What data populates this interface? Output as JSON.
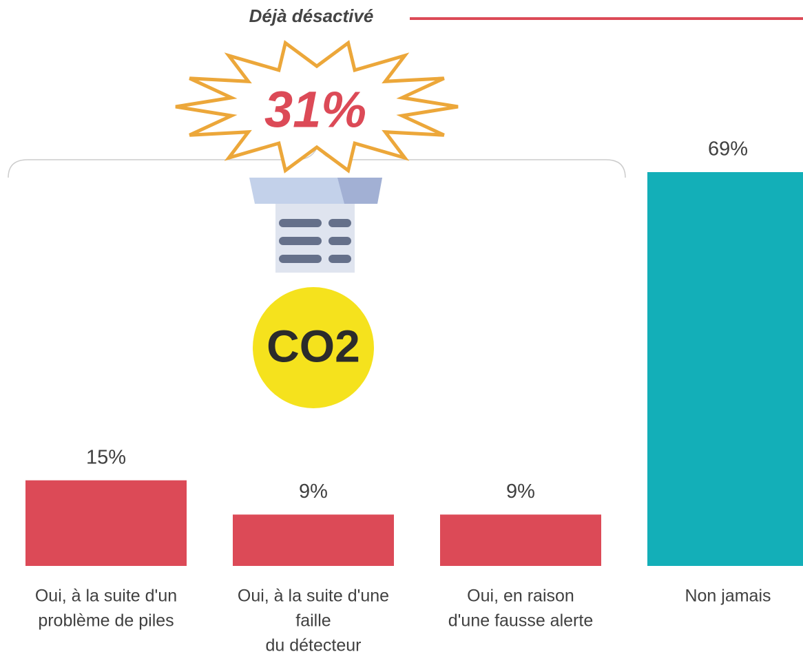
{
  "chart_data": {
    "type": "bar",
    "title": "Déjà désactivé",
    "annotation": "31%",
    "badge": "CO2",
    "categories": [
      [
        "Oui, à la suite d'un",
        "problème de piles"
      ],
      [
        "Oui, à la suite d'une",
        "faille",
        "du détecteur"
      ],
      [
        "Oui, en raison",
        "d'une fausse alerte"
      ],
      [
        "Non jamais"
      ]
    ],
    "values": [
      15,
      9,
      9,
      69
    ],
    "value_labels": [
      "15%",
      "9%",
      "9%",
      "69%"
    ],
    "colors": [
      "#dc4a57",
      "#dc4a57",
      "#dc4a57",
      "#13afb8"
    ],
    "ylim": [
      0,
      69
    ]
  }
}
